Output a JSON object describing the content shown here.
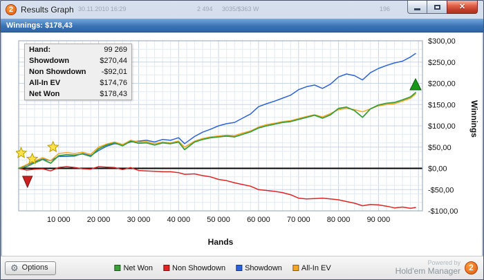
{
  "window": {
    "title": "Results Graph",
    "logo_text": "2",
    "winnings": "Winnings: $178,43",
    "caption": {
      "close": "✕"
    },
    "ghosts": [
      {
        "text": "30.11.2010 16:29",
        "x": 112
      },
      {
        "text": "2 494",
        "x": 284
      },
      {
        "text": "3035/$363 W",
        "x": 320
      },
      {
        "text": "196",
        "x": 548
      }
    ]
  },
  "stats": {
    "rows": [
      {
        "label": "Hand:",
        "value": "99 269"
      },
      {
        "label": "Showdown",
        "value": "$270,44"
      },
      {
        "label": "Non Showdown",
        "value": "-$92,01"
      },
      {
        "label": "All-In EV",
        "value": "$174,76"
      },
      {
        "label": "Net Won",
        "value": "$178,43"
      }
    ]
  },
  "footer": {
    "options_label": "Options",
    "powered_by": "Powered by",
    "brand": "Hold'em Manager",
    "logo_text": "2"
  },
  "chart_data": {
    "type": "line",
    "title": "",
    "xlabel": "Hands",
    "ylabel": "Winnings",
    "xlim": [
      0,
      101000
    ],
    "ylim": [
      -100,
      300
    ],
    "grid": true,
    "legend_position": "bottom",
    "x_ticks": [
      {
        "v": 10000,
        "label": "10 000"
      },
      {
        "v": 20000,
        "label": "20 000"
      },
      {
        "v": 30000,
        "label": "30 000"
      },
      {
        "v": 40000,
        "label": "40 000"
      },
      {
        "v": 50000,
        "label": "50 000"
      },
      {
        "v": 60000,
        "label": "60 000"
      },
      {
        "v": 70000,
        "label": "70 000"
      },
      {
        "v": 80000,
        "label": "80 000"
      },
      {
        "v": 90000,
        "label": "90 000"
      }
    ],
    "y_ticks": [
      {
        "v": 300,
        "label": "$300,00"
      },
      {
        "v": 250,
        "label": "$250,00"
      },
      {
        "v": 200,
        "label": "$200,00"
      },
      {
        "v": 150,
        "label": "$150,00"
      },
      {
        "v": 100,
        "label": "$100,00"
      },
      {
        "v": 50,
        "label": "$50,00"
      },
      {
        "v": 0,
        "label": "$0,00"
      },
      {
        "v": -50,
        "label": "-$50,00"
      },
      {
        "v": -100,
        "label": "-$100,00"
      }
    ],
    "draw_order": [
      1,
      2,
      3,
      0
    ],
    "series": [
      {
        "name": "Net Won",
        "color": "#3a9e3a",
        "width": 1.8,
        "points": [
          [
            0,
            0
          ],
          [
            2000,
            4
          ],
          [
            4000,
            13
          ],
          [
            6000,
            21
          ],
          [
            8000,
            12
          ],
          [
            10000,
            30
          ],
          [
            12000,
            32
          ],
          [
            14000,
            31
          ],
          [
            16000,
            34
          ],
          [
            18000,
            28
          ],
          [
            20000,
            46
          ],
          [
            22000,
            55
          ],
          [
            24000,
            60
          ],
          [
            26000,
            53
          ],
          [
            28000,
            64
          ],
          [
            30000,
            59
          ],
          [
            32000,
            60
          ],
          [
            34000,
            55
          ],
          [
            36000,
            60
          ],
          [
            38000,
            58
          ],
          [
            40000,
            62
          ],
          [
            41500,
            44
          ],
          [
            44000,
            62
          ],
          [
            46000,
            68
          ],
          [
            48000,
            72
          ],
          [
            50000,
            74
          ],
          [
            52000,
            76
          ],
          [
            54000,
            74
          ],
          [
            56000,
            80
          ],
          [
            58000,
            86
          ],
          [
            60000,
            95
          ],
          [
            62000,
            100
          ],
          [
            64000,
            104
          ],
          [
            66000,
            108
          ],
          [
            68000,
            110
          ],
          [
            70000,
            115
          ],
          [
            72000,
            120
          ],
          [
            74000,
            125
          ],
          [
            76000,
            118
          ],
          [
            78000,
            126
          ],
          [
            80000,
            141
          ],
          [
            82000,
            144
          ],
          [
            84000,
            136
          ],
          [
            86000,
            120
          ],
          [
            88000,
            140
          ],
          [
            90000,
            149
          ],
          [
            92000,
            153
          ],
          [
            94000,
            155
          ],
          [
            96000,
            161
          ],
          [
            98000,
            168
          ],
          [
            99269,
            178
          ]
        ]
      },
      {
        "name": "Non Showdown",
        "color": "#e02424",
        "width": 1.5,
        "points": [
          [
            0,
            0
          ],
          [
            2000,
            -4
          ],
          [
            4000,
            -2
          ],
          [
            6000,
            -1
          ],
          [
            8000,
            -6
          ],
          [
            10000,
            2
          ],
          [
            12000,
            4
          ],
          [
            14000,
            2
          ],
          [
            16000,
            -1
          ],
          [
            18000,
            -2
          ],
          [
            20000,
            4
          ],
          [
            22000,
            3
          ],
          [
            24000,
            2
          ],
          [
            26000,
            -3
          ],
          [
            28000,
            2
          ],
          [
            30000,
            -5
          ],
          [
            32000,
            -6
          ],
          [
            34000,
            -7
          ],
          [
            36000,
            -8
          ],
          [
            38000,
            -8
          ],
          [
            40000,
            -10
          ],
          [
            41500,
            -14
          ],
          [
            44000,
            -13
          ],
          [
            46000,
            -17
          ],
          [
            48000,
            -20
          ],
          [
            50000,
            -26
          ],
          [
            52000,
            -29
          ],
          [
            54000,
            -34
          ],
          [
            56000,
            -38
          ],
          [
            58000,
            -42
          ],
          [
            60000,
            -50
          ],
          [
            62000,
            -52
          ],
          [
            64000,
            -54
          ],
          [
            66000,
            -57
          ],
          [
            68000,
            -62
          ],
          [
            70000,
            -70
          ],
          [
            72000,
            -72
          ],
          [
            74000,
            -71
          ],
          [
            76000,
            -70
          ],
          [
            78000,
            -72
          ],
          [
            80000,
            -74
          ],
          [
            82000,
            -78
          ],
          [
            84000,
            -82
          ],
          [
            86000,
            -88
          ],
          [
            88000,
            -85
          ],
          [
            90000,
            -86
          ],
          [
            92000,
            -89
          ],
          [
            94000,
            -93
          ],
          [
            96000,
            -91
          ],
          [
            98000,
            -94
          ],
          [
            99269,
            -92
          ]
        ]
      },
      {
        "name": "Showdown",
        "color": "#2b62d9",
        "width": 1.5,
        "points": [
          [
            0,
            0
          ],
          [
            2000,
            8
          ],
          [
            4000,
            15
          ],
          [
            6000,
            22
          ],
          [
            8000,
            18
          ],
          [
            10000,
            28
          ],
          [
            12000,
            28
          ],
          [
            14000,
            29
          ],
          [
            16000,
            35
          ],
          [
            18000,
            30
          ],
          [
            20000,
            42
          ],
          [
            22000,
            52
          ],
          [
            24000,
            58
          ],
          [
            26000,
            56
          ],
          [
            28000,
            62
          ],
          [
            30000,
            64
          ],
          [
            32000,
            66
          ],
          [
            34000,
            62
          ],
          [
            36000,
            68
          ],
          [
            38000,
            66
          ],
          [
            40000,
            72
          ],
          [
            41500,
            58
          ],
          [
            44000,
            75
          ],
          [
            46000,
            85
          ],
          [
            48000,
            92
          ],
          [
            50000,
            100
          ],
          [
            52000,
            105
          ],
          [
            54000,
            108
          ],
          [
            56000,
            118
          ],
          [
            58000,
            128
          ],
          [
            60000,
            145
          ],
          [
            62000,
            152
          ],
          [
            64000,
            158
          ],
          [
            66000,
            165
          ],
          [
            68000,
            172
          ],
          [
            70000,
            185
          ],
          [
            72000,
            192
          ],
          [
            74000,
            196
          ],
          [
            76000,
            188
          ],
          [
            78000,
            198
          ],
          [
            80000,
            215
          ],
          [
            82000,
            222
          ],
          [
            84000,
            218
          ],
          [
            86000,
            208
          ],
          [
            88000,
            225
          ],
          [
            90000,
            235
          ],
          [
            92000,
            242
          ],
          [
            94000,
            248
          ],
          [
            96000,
            252
          ],
          [
            98000,
            262
          ],
          [
            99269,
            270
          ]
        ]
      },
      {
        "name": "All-In EV",
        "color": "#f5a623",
        "width": 1.5,
        "points": [
          [
            0,
            0
          ],
          [
            2000,
            9
          ],
          [
            4000,
            17
          ],
          [
            6000,
            25
          ],
          [
            8000,
            18
          ],
          [
            10000,
            35
          ],
          [
            12000,
            37
          ],
          [
            14000,
            35
          ],
          [
            16000,
            38
          ],
          [
            18000,
            33
          ],
          [
            20000,
            50
          ],
          [
            22000,
            57
          ],
          [
            24000,
            62
          ],
          [
            26000,
            56
          ],
          [
            28000,
            66
          ],
          [
            30000,
            62
          ],
          [
            32000,
            63
          ],
          [
            34000,
            58
          ],
          [
            36000,
            62
          ],
          [
            38000,
            60
          ],
          [
            40000,
            64
          ],
          [
            41500,
            50
          ],
          [
            44000,
            64
          ],
          [
            46000,
            70
          ],
          [
            48000,
            74
          ],
          [
            50000,
            76
          ],
          [
            52000,
            78
          ],
          [
            54000,
            77
          ],
          [
            56000,
            83
          ],
          [
            58000,
            88
          ],
          [
            60000,
            97
          ],
          [
            62000,
            103
          ],
          [
            64000,
            106
          ],
          [
            66000,
            110
          ],
          [
            68000,
            112
          ],
          [
            70000,
            117
          ],
          [
            72000,
            122
          ],
          [
            74000,
            126
          ],
          [
            76000,
            121
          ],
          [
            78000,
            129
          ],
          [
            80000,
            138
          ],
          [
            82000,
            141
          ],
          [
            84000,
            138
          ],
          [
            86000,
            133
          ],
          [
            88000,
            140
          ],
          [
            90000,
            147
          ],
          [
            92000,
            150
          ],
          [
            94000,
            152
          ],
          [
            96000,
            158
          ],
          [
            98000,
            165
          ],
          [
            99269,
            175
          ]
        ]
      }
    ],
    "markers": [
      {
        "type": "star",
        "x": 600,
        "y": 36,
        "color": "#ffe14d",
        "stroke": "#b89b00"
      },
      {
        "type": "star",
        "x": 3400,
        "y": 22,
        "color": "#ffe14d",
        "stroke": "#b89b00"
      },
      {
        "type": "star",
        "x": 8600,
        "y": 50,
        "color": "#ffe14d",
        "stroke": "#b89b00"
      },
      {
        "type": "triangle-down",
        "x": 2200,
        "y": -30,
        "color": "#cc2020",
        "stroke": "#7e1212"
      },
      {
        "type": "triangle-up",
        "x": 99269,
        "y": 196,
        "color": "#189618",
        "stroke": "#0b5c0b"
      }
    ]
  }
}
